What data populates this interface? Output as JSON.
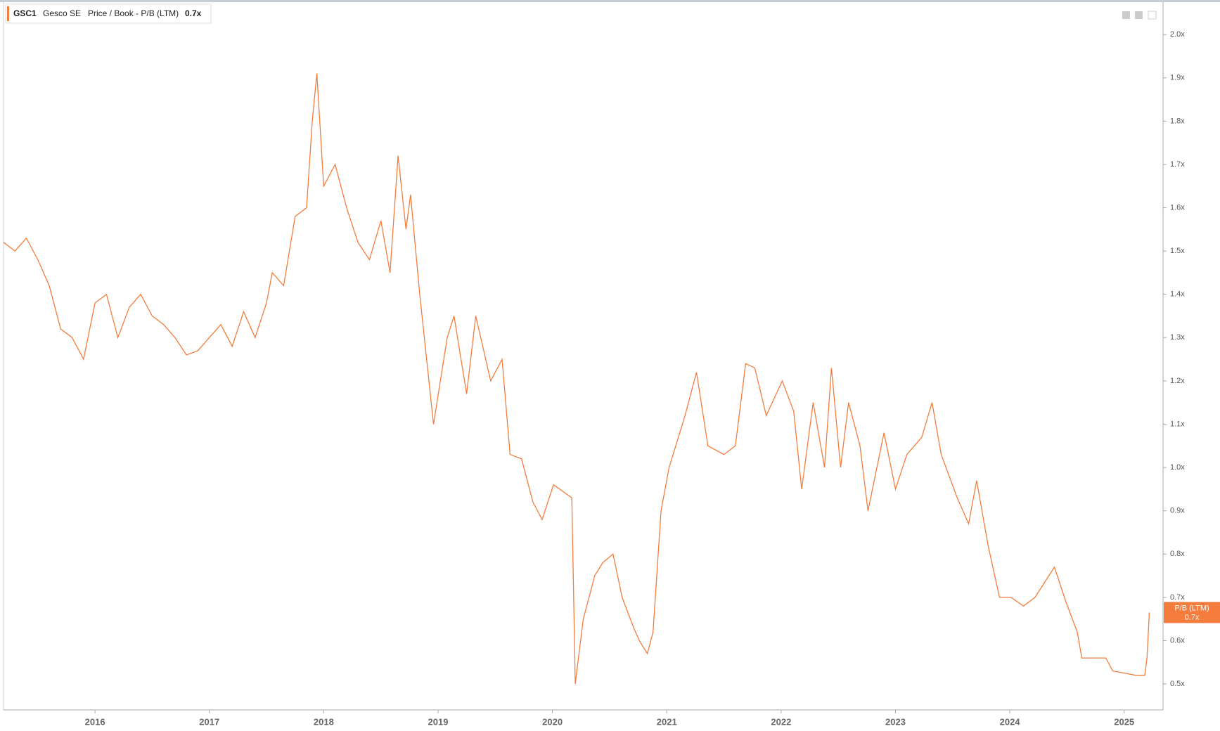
{
  "chart_data": {
    "type": "line",
    "ticker": "GSC1",
    "company": "Gesco SE",
    "metric": "Price / Book - P/B (LTM)",
    "badge_name": "P/B (LTM)",
    "last_label": "0.7x",
    "xlim": [
      2015.2,
      2025.34
    ],
    "xticks": [
      2016,
      2017,
      2018,
      2019,
      2020,
      2021,
      2022,
      2023,
      2024,
      2025
    ],
    "ylim": [
      0.44,
      2.075
    ],
    "yticks": [
      {
        "value": 0.5,
        "label": "0.5x"
      },
      {
        "value": 0.6,
        "label": "0.6x"
      },
      {
        "value": 0.7,
        "label": "0.7x"
      },
      {
        "value": 0.8,
        "label": "0.8x"
      },
      {
        "value": 0.9,
        "label": "0.9x"
      },
      {
        "value": 1.0,
        "label": "1.0x"
      },
      {
        "value": 1.1,
        "label": "1.1x"
      },
      {
        "value": 1.2,
        "label": "1.2x"
      },
      {
        "value": 1.3,
        "label": "1.3x"
      },
      {
        "value": 1.4,
        "label": "1.4x"
      },
      {
        "value": 1.5,
        "label": "1.5x"
      },
      {
        "value": 1.6,
        "label": "1.6x"
      },
      {
        "value": 1.7,
        "label": "1.7x"
      },
      {
        "value": 1.8,
        "label": "1.8x"
      },
      {
        "value": 1.9,
        "label": "1.9x"
      },
      {
        "value": 2.0,
        "label": "2.0x"
      }
    ],
    "series": [
      {
        "name": "P/B (LTM)",
        "color": "#f47c3c",
        "x": [
          2015.2,
          2015.3,
          2015.4,
          2015.5,
          2015.6,
          2015.7,
          2015.8,
          2015.9,
          2016.0,
          2016.1,
          2016.2,
          2016.3,
          2016.4,
          2016.5,
          2016.6,
          2016.7,
          2016.8,
          2016.9,
          2017.0,
          2017.1,
          2017.2,
          2017.3,
          2017.4,
          2017.5,
          2017.55,
          2017.65,
          2017.75,
          2017.85,
          2017.9,
          2017.94,
          2018.0,
          2018.1,
          2018.2,
          2018.3,
          2018.4,
          2018.5,
          2018.58,
          2018.65,
          2018.72,
          2018.76,
          2018.84,
          2018.96,
          2019.08,
          2019.14,
          2019.25,
          2019.33,
          2019.46,
          2019.56,
          2019.63,
          2019.73,
          2019.83,
          2019.91,
          2020.01,
          2020.17,
          2020.2,
          2020.27,
          2020.37,
          2020.44,
          2020.53,
          2020.61,
          2020.71,
          2020.76,
          2020.83,
          2020.88,
          2020.95,
          2021.02,
          2021.16,
          2021.26,
          2021.36,
          2021.5,
          2021.6,
          2021.69,
          2021.77,
          2021.87,
          2022.01,
          2022.11,
          2022.18,
          2022.28,
          2022.38,
          2022.44,
          2022.52,
          2022.59,
          2022.69,
          2022.76,
          2022.9,
          2023.0,
          2023.1,
          2023.23,
          2023.32,
          2023.4,
          2023.54,
          2023.64,
          2023.71,
          2023.81,
          2023.91,
          2024.01,
          2024.12,
          2024.22,
          2024.39,
          2024.49,
          2024.59,
          2024.63,
          2024.84,
          2024.9,
          2025.1,
          2025.18,
          2025.2,
          2025.22
        ],
        "values": [
          1.52,
          1.5,
          1.53,
          1.48,
          1.42,
          1.32,
          1.3,
          1.25,
          1.38,
          1.4,
          1.3,
          1.37,
          1.4,
          1.35,
          1.33,
          1.3,
          1.26,
          1.27,
          1.3,
          1.33,
          1.28,
          1.36,
          1.3,
          1.38,
          1.45,
          1.42,
          1.58,
          1.6,
          1.8,
          1.91,
          1.65,
          1.7,
          1.6,
          1.52,
          1.48,
          1.57,
          1.45,
          1.72,
          1.55,
          1.63,
          1.4,
          1.1,
          1.3,
          1.35,
          1.17,
          1.35,
          1.2,
          1.25,
          1.03,
          1.02,
          0.92,
          0.88,
          0.96,
          0.93,
          0.5,
          0.65,
          0.75,
          0.78,
          0.8,
          0.7,
          0.63,
          0.6,
          0.57,
          0.62,
          0.9,
          1.0,
          1.12,
          1.22,
          1.05,
          1.03,
          1.05,
          1.24,
          1.23,
          1.12,
          1.2,
          1.13,
          0.95,
          1.15,
          1.0,
          1.23,
          1.0,
          1.15,
          1.05,
          0.9,
          1.08,
          0.95,
          1.03,
          1.07,
          1.15,
          1.03,
          0.93,
          0.87,
          0.97,
          0.82,
          0.7,
          0.7,
          0.68,
          0.7,
          0.77,
          0.69,
          0.62,
          0.56,
          0.56,
          0.53,
          0.52,
          0.52,
          0.56,
          0.665
        ]
      }
    ]
  }
}
